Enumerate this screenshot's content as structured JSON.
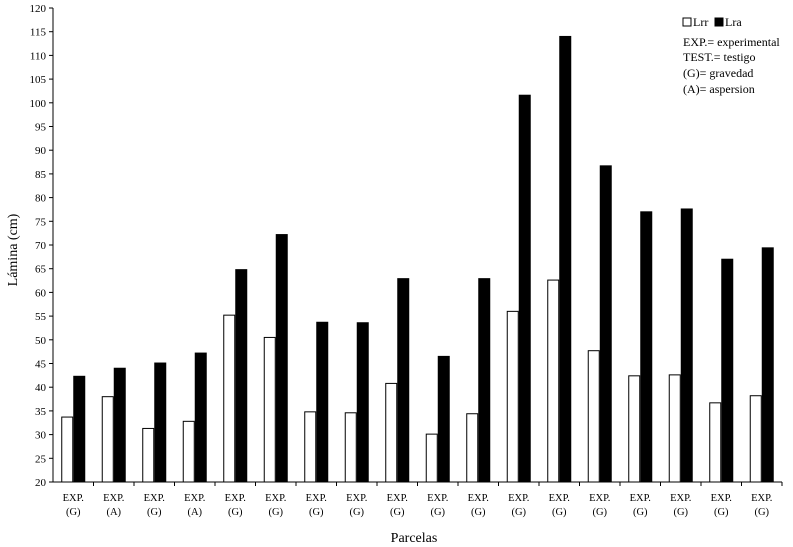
{
  "chart_data": {
    "type": "bar",
    "title": "",
    "xlabel": "Parcelas",
    "ylabel": "Lámina (cm)",
    "ylim": [
      20,
      120
    ],
    "yticks": [
      20,
      25,
      30,
      35,
      40,
      45,
      50,
      55,
      60,
      65,
      70,
      75,
      80,
      85,
      90,
      95,
      100,
      105,
      110,
      115,
      120
    ],
    "grid": false,
    "legend_position": "top-right",
    "categories": [
      {
        "line1": "EXP.",
        "line2": "(G)"
      },
      {
        "line1": "EXP.",
        "line2": "(A)"
      },
      {
        "line1": "EXP.",
        "line2": "(G)"
      },
      {
        "line1": "EXP.",
        "line2": "(A)"
      },
      {
        "line1": "EXP.",
        "line2": "(G)"
      },
      {
        "line1": "EXP.",
        "line2": "(G)"
      },
      {
        "line1": "EXP.",
        "line2": "(G)"
      },
      {
        "line1": "EXP.",
        "line2": "(G)"
      },
      {
        "line1": "EXP.",
        "line2": "(G)"
      },
      {
        "line1": "EXP.",
        "line2": "(G)"
      },
      {
        "line1": "EXP.",
        "line2": "(G)"
      },
      {
        "line1": "EXP.",
        "line2": "(G)"
      },
      {
        "line1": "EXP.",
        "line2": "(G)"
      },
      {
        "line1": "EXP.",
        "line2": "(G)"
      },
      {
        "line1": "EXP.",
        "line2": "(G)"
      },
      {
        "line1": "EXP.",
        "line2": "(G)"
      },
      {
        "line1": "EXP.",
        "line2": "(G)"
      },
      {
        "line1": "EXP.",
        "line2": "(G)"
      }
    ],
    "series": [
      {
        "name": "Lrr",
        "color": "#ffffff",
        "values": [
          33.7,
          38,
          31.3,
          32.8,
          55.2,
          50.5,
          34.8,
          34.6,
          40.8,
          30.1,
          34.4,
          56,
          62.6,
          47.7,
          42.4,
          42.6,
          36.7,
          38.2
        ]
      },
      {
        "name": "Lra",
        "color": "#000000",
        "values": [
          42.3,
          44,
          45.1,
          47.2,
          64.8,
          72.2,
          53.7,
          53.6,
          62.9,
          46.5,
          62.9,
          101.6,
          114,
          86.7,
          77,
          77.6,
          67,
          69.4
        ]
      }
    ],
    "annotations": [
      "EXP.= experimental",
      "TEST.= testigo",
      "(G)= gravedad",
      "(A)= aspersion"
    ]
  }
}
